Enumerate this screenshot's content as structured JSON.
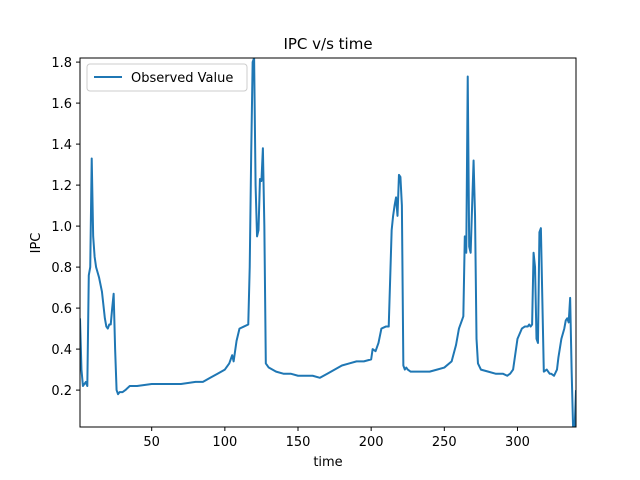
{
  "chart_data": {
    "type": "line",
    "title": "IPC v/s time",
    "xlabel": "time",
    "ylabel": "IPC",
    "xlim": [
      1,
      340
    ],
    "ylim": [
      0.02,
      1.82
    ],
    "xticks": [
      50,
      100,
      150,
      200,
      250,
      300
    ],
    "yticks": [
      0.2,
      0.4,
      0.6,
      0.8,
      1.0,
      1.2,
      1.4,
      1.6,
      1.8
    ],
    "yticklabels": [
      "0.2",
      "0.4",
      "0.6",
      "0.8",
      "1.0",
      "1.2",
      "1.4",
      "1.6",
      "1.8"
    ],
    "grid": false,
    "legend": "upper-left",
    "series": [
      {
        "name": "Observed Value",
        "color": "#1f77b4",
        "x": [
          1,
          2,
          3,
          4,
          5,
          6,
          7,
          8,
          9,
          10,
          11,
          12,
          14,
          16,
          18,
          19,
          20,
          21,
          22,
          23,
          24,
          25,
          26,
          27,
          28,
          30,
          32,
          35,
          40,
          50,
          60,
          70,
          80,
          85,
          90,
          95,
          100,
          103,
          105,
          106,
          107,
          108,
          110,
          113,
          116,
          117,
          118,
          119,
          120,
          121,
          122,
          123,
          124,
          125,
          126,
          127,
          128,
          130,
          135,
          140,
          145,
          150,
          155,
          160,
          165,
          170,
          175,
          180,
          185,
          190,
          195,
          200,
          201,
          203,
          205,
          207,
          210,
          212,
          214,
          215,
          216,
          217,
          218,
          219,
          220,
          221,
          222,
          223,
          224,
          225,
          227,
          230,
          235,
          240,
          245,
          250,
          255,
          258,
          260,
          262,
          263,
          264,
          265,
          266,
          267,
          268,
          269,
          270,
          271,
          272,
          273,
          275,
          280,
          285,
          290,
          293,
          295,
          297,
          298,
          300,
          303,
          305,
          307,
          308,
          309,
          310,
          311,
          312,
          313,
          314,
          315,
          316,
          318,
          320,
          322,
          323,
          325,
          327,
          328,
          330,
          332,
          333,
          334,
          335,
          336,
          337,
          338,
          339,
          340
        ],
        "y": [
          0.55,
          0.3,
          0.22,
          0.23,
          0.24,
          0.22,
          0.76,
          0.8,
          1.33,
          0.95,
          0.85,
          0.8,
          0.75,
          0.68,
          0.55,
          0.51,
          0.5,
          0.52,
          0.52,
          0.6,
          0.67,
          0.4,
          0.2,
          0.18,
          0.19,
          0.19,
          0.2,
          0.22,
          0.22,
          0.23,
          0.23,
          0.23,
          0.24,
          0.24,
          0.26,
          0.28,
          0.3,
          0.33,
          0.37,
          0.34,
          0.39,
          0.44,
          0.5,
          0.51,
          0.52,
          0.8,
          1.35,
          1.8,
          1.82,
          1.2,
          0.95,
          0.98,
          1.23,
          1.22,
          1.38,
          1.0,
          0.33,
          0.31,
          0.29,
          0.28,
          0.28,
          0.27,
          0.27,
          0.27,
          0.26,
          0.28,
          0.3,
          0.32,
          0.33,
          0.34,
          0.34,
          0.35,
          0.4,
          0.39,
          0.43,
          0.5,
          0.51,
          0.51,
          0.98,
          1.05,
          1.1,
          1.14,
          1.05,
          1.25,
          1.24,
          1.1,
          0.32,
          0.3,
          0.31,
          0.3,
          0.29,
          0.29,
          0.29,
          0.29,
          0.3,
          0.31,
          0.34,
          0.42,
          0.5,
          0.54,
          0.56,
          0.95,
          0.87,
          1.73,
          0.9,
          0.87,
          1.1,
          1.32,
          1.05,
          0.45,
          0.33,
          0.3,
          0.29,
          0.28,
          0.28,
          0.27,
          0.28,
          0.3,
          0.35,
          0.45,
          0.5,
          0.51,
          0.51,
          0.52,
          0.51,
          0.52,
          0.87,
          0.8,
          0.45,
          0.43,
          0.97,
          0.99,
          0.29,
          0.3,
          0.28,
          0.28,
          0.27,
          0.3,
          0.36,
          0.45,
          0.5,
          0.54,
          0.55,
          0.53,
          0.65,
          0.3,
          0.02,
          0.0,
          0.2
        ]
      }
    ]
  }
}
